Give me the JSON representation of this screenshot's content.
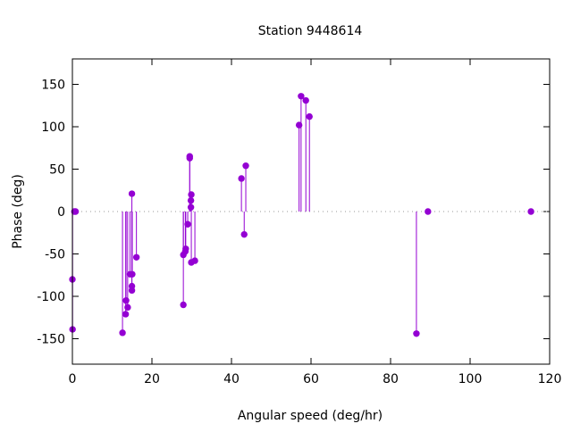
{
  "chart_data": {
    "type": "scatter",
    "style": "impulses-with-points",
    "title": "Station 9448614",
    "xlabel": "Angular speed (deg/hr)",
    "ylabel": "Phase (deg)",
    "xlim": [
      0,
      120
    ],
    "ylim": [
      -180,
      180
    ],
    "xticks": [
      0,
      20,
      40,
      60,
      80,
      100,
      120
    ],
    "yticks": [
      -150,
      -100,
      -50,
      0,
      50,
      100,
      150
    ],
    "zero_line": true,
    "color": "#9400d3",
    "points": [
      {
        "x": 0.0,
        "y": -80
      },
      {
        "x": 0.04,
        "y": -139
      },
      {
        "x": 0.5,
        "y": 0
      },
      {
        "x": 0.8,
        "y": 0
      },
      {
        "x": 12.6,
        "y": -143
      },
      {
        "x": 13.4,
        "y": -121
      },
      {
        "x": 13.5,
        "y": -105
      },
      {
        "x": 13.9,
        "y": -113
      },
      {
        "x": 14.5,
        "y": -74
      },
      {
        "x": 14.96,
        "y": 21
      },
      {
        "x": 14.96,
        "y": -93
      },
      {
        "x": 14.96,
        "y": -88
      },
      {
        "x": 15.04,
        "y": -74
      },
      {
        "x": 16.1,
        "y": -54
      },
      {
        "x": 27.9,
        "y": -110
      },
      {
        "x": 27.9,
        "y": -51
      },
      {
        "x": 28.4,
        "y": -47
      },
      {
        "x": 28.5,
        "y": -44
      },
      {
        "x": 29.0,
        "y": -15
      },
      {
        "x": 29.5,
        "y": 65
      },
      {
        "x": 29.5,
        "y": 63
      },
      {
        "x": 29.9,
        "y": 20
      },
      {
        "x": 29.8,
        "y": 13
      },
      {
        "x": 29.8,
        "y": 5
      },
      {
        "x": 29.9,
        "y": -60
      },
      {
        "x": 30.8,
        "y": -58
      },
      {
        "x": 42.5,
        "y": 39
      },
      {
        "x": 43.2,
        "y": -27
      },
      {
        "x": 43.6,
        "y": 54
      },
      {
        "x": 57.0,
        "y": 102
      },
      {
        "x": 57.5,
        "y": 136
      },
      {
        "x": 58.7,
        "y": 131
      },
      {
        "x": 59.6,
        "y": 112
      },
      {
        "x": 86.5,
        "y": -144
      },
      {
        "x": 89.4,
        "y": 0
      },
      {
        "x": 115.3,
        "y": 0
      }
    ]
  }
}
